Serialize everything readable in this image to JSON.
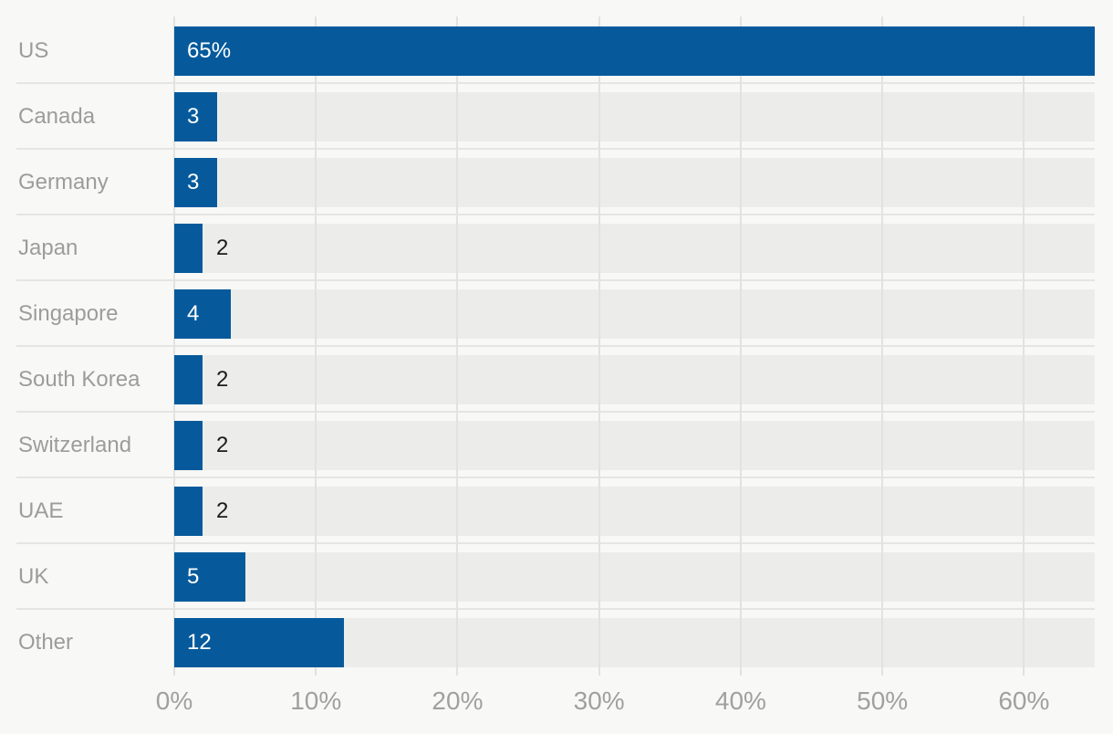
{
  "chart_data": {
    "type": "bar",
    "orientation": "horizontal",
    "categories": [
      "US",
      "Canada",
      "Germany",
      "Japan",
      "Singapore",
      "South Korea",
      "Switzerland",
      "UAE",
      "UK",
      "Other"
    ],
    "values": [
      65,
      3,
      3,
      2,
      4,
      2,
      2,
      2,
      5,
      12
    ],
    "value_labels": [
      "65%",
      "3",
      "3",
      "2",
      "4",
      "2",
      "2",
      "2",
      "5",
      "12"
    ],
    "label_inside": [
      true,
      true,
      true,
      false,
      true,
      false,
      false,
      false,
      true,
      true
    ],
    "title": "",
    "xlabel": "",
    "ylabel": "",
    "xlim": [
      0,
      65
    ],
    "x_ticks": [
      0,
      10,
      20,
      30,
      40,
      50,
      60
    ],
    "x_tick_labels": [
      "0%",
      "10%",
      "20%",
      "30%",
      "40%",
      "50%",
      "60%"
    ],
    "grid": "vertical-on",
    "legend": "none",
    "colors": {
      "bar": "#065a9c",
      "track": "#ececea",
      "background": "#f8f8f6",
      "gridline": "#e2e2e0",
      "separator": "#e5e5e3",
      "category_label": "#9c9c9c",
      "tick_label": "#a0a0a0",
      "value_label_inside": "#ffffff",
      "value_label_outside": "#1c1c1c"
    }
  }
}
